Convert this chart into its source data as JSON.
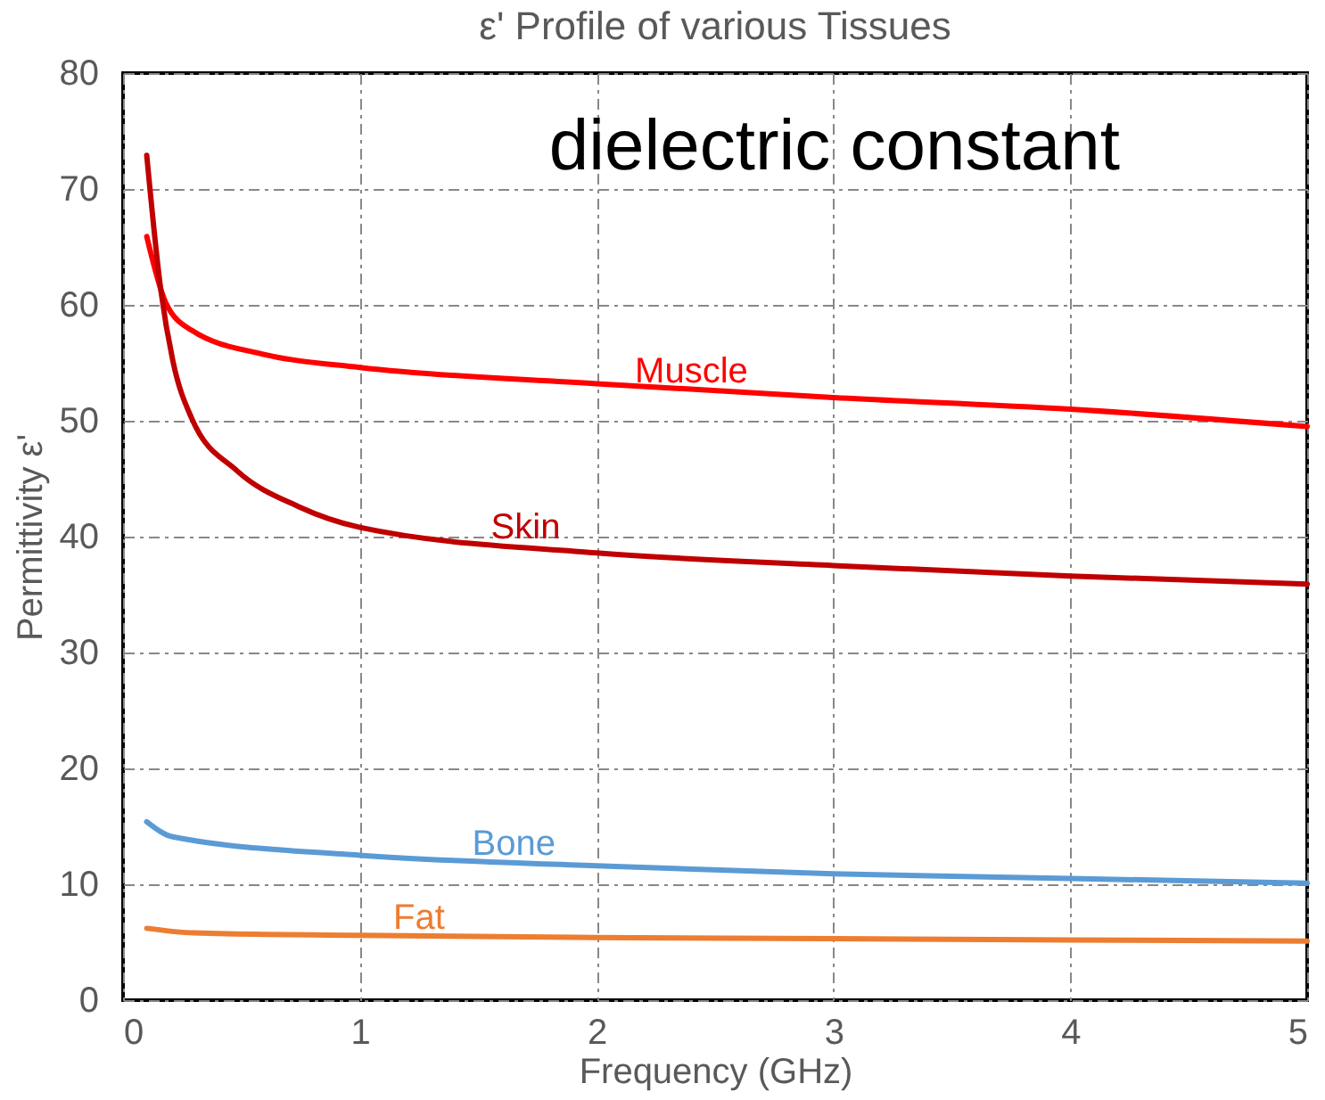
{
  "chart_data": {
    "type": "line",
    "title": "ε' Profile of various Tissues",
    "xlabel": "Frequency (GHz)",
    "ylabel": "Permittivity ε'",
    "annotations": [
      "dielectric constant"
    ],
    "xlim": [
      0,
      5
    ],
    "ylim": [
      0,
      80
    ],
    "xticks": [
      0,
      1,
      2,
      3,
      4,
      5
    ],
    "yticks": [
      0,
      10,
      20,
      30,
      40,
      50,
      60,
      70,
      80
    ],
    "grid": true,
    "legend": false,
    "marker": "none",
    "line_style": "solid",
    "series": [
      {
        "name": "Muscle",
        "color": "#ff0000",
        "x": [
          0.1,
          0.18,
          0.29,
          0.6,
          1,
          2,
          3,
          4,
          5
        ],
        "values": [
          65.9,
          60.2,
          57.8,
          55.7,
          54.6,
          53.2,
          52,
          51,
          49.5
        ]
      },
      {
        "name": "Skin",
        "color": "#c00000",
        "x": [
          0.1,
          0.16,
          0.21,
          0.29,
          0.48,
          0.74,
          1,
          2,
          3,
          4,
          5
        ],
        "values": [
          72.9,
          61.2,
          55.2,
          50.2,
          45.7,
          42.6,
          40.8,
          38.6,
          37.5,
          36.6,
          35.9
        ]
      },
      {
        "name": "Bone",
        "color": "#5b9bd5",
        "x": [
          0.1,
          0.21,
          1,
          2,
          3,
          4,
          5
        ],
        "values": [
          15.4,
          14.1,
          12.5,
          11.6,
          10.9,
          10.5,
          10.1
        ]
      },
      {
        "name": "Fat",
        "color": "#ed7d31",
        "x": [
          0.1,
          0.3,
          1,
          2,
          3,
          4,
          5
        ],
        "values": [
          6.2,
          5.8,
          5.6,
          5.4,
          5.3,
          5.2,
          5.1
        ]
      }
    ]
  }
}
